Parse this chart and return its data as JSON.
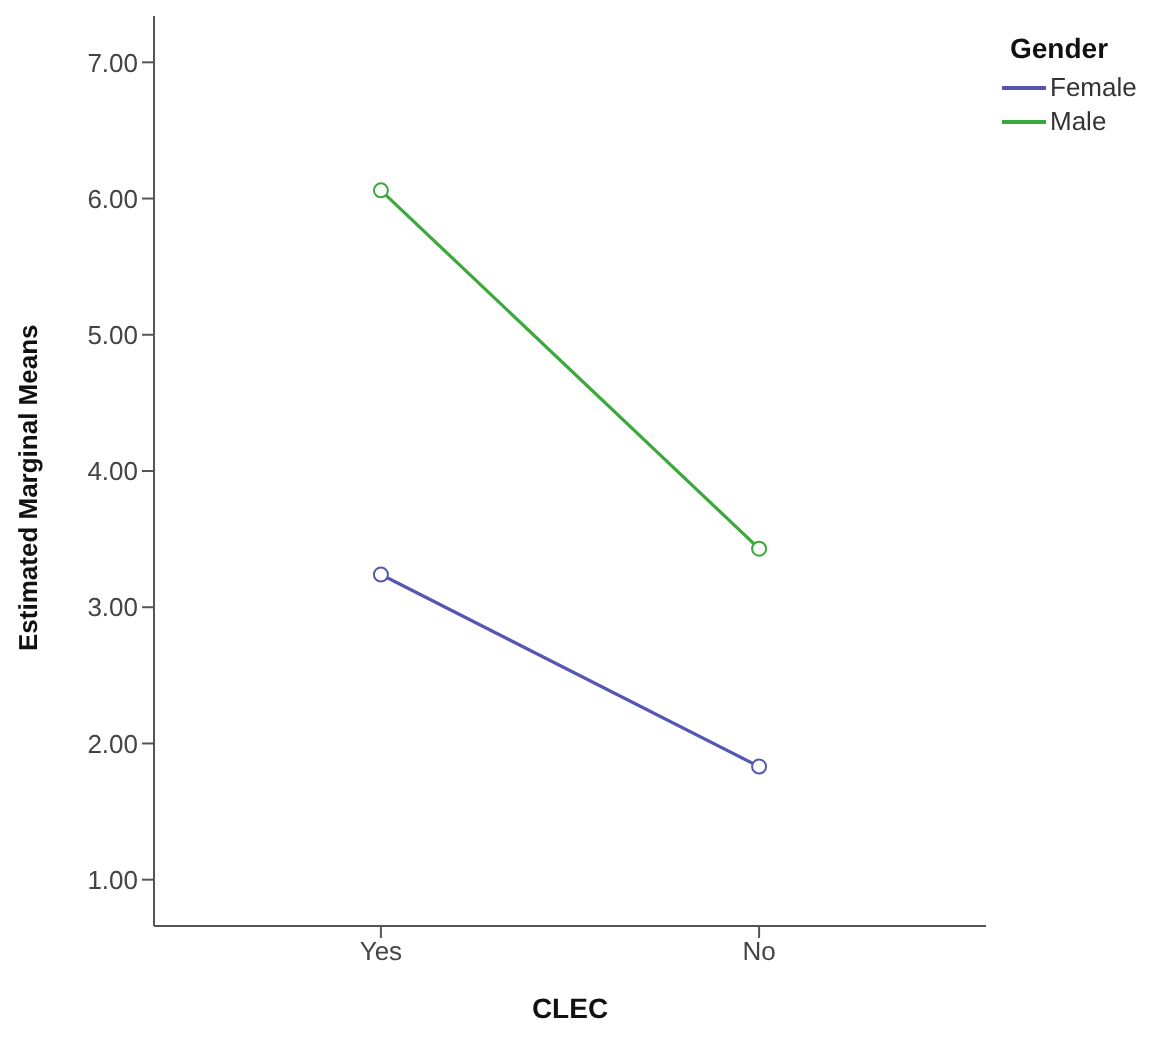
{
  "chart_data": {
    "type": "line",
    "xlabel": "CLEC",
    "ylabel": "Estimated Marginal Means",
    "legend_title": "Gender",
    "categories": [
      "Yes",
      "No"
    ],
    "series": [
      {
        "name": "Female",
        "color": "#5458b4",
        "values": [
          3.24,
          1.83
        ]
      },
      {
        "name": "Male",
        "color": "#3aa83a",
        "values": [
          6.06,
          3.43
        ]
      }
    ],
    "ylim": [
      0.66,
      7.34
    ],
    "yticks": [
      {
        "value": 1,
        "label": "1.00"
      },
      {
        "value": 2,
        "label": "2.00"
      },
      {
        "value": 3,
        "label": "3.00"
      },
      {
        "value": 4,
        "label": "4.00"
      },
      {
        "value": 5,
        "label": "5.00"
      },
      {
        "value": 6,
        "label": "6.00"
      },
      {
        "value": 7,
        "label": "7.00"
      }
    ],
    "grid": false,
    "legend": "top right",
    "marker": "circle",
    "line_style": "solid"
  }
}
